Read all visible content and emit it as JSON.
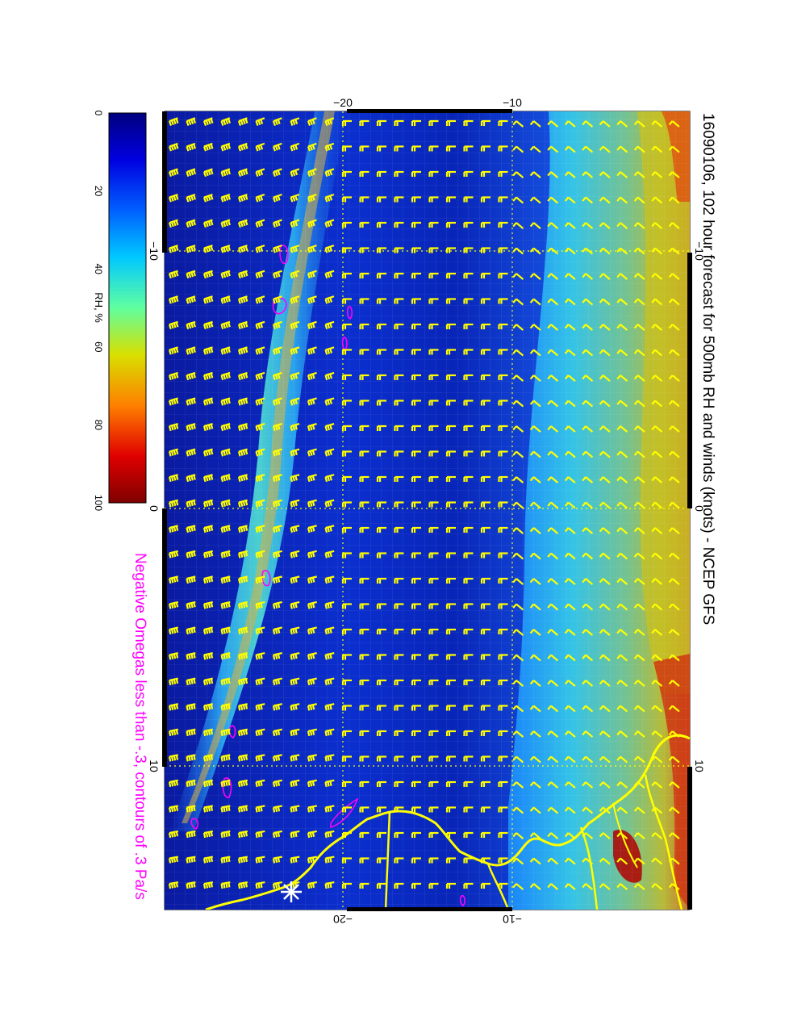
{
  "title": "16090106, 102 hour forecast for 500mb RH and winds (knots) - NCEP GFS",
  "subtitle": "Negative Omegas less than -.3, contours of .3 Pa/s",
  "colorbar": {
    "label": "RH, %",
    "ticks": [
      "0",
      "20",
      "40",
      "60",
      "80",
      "100"
    ],
    "tick_values": [
      0,
      20,
      40,
      60,
      80,
      100
    ]
  },
  "map_axes": {
    "lon_ticks": [
      {
        "value": -10,
        "top_label": "−10",
        "bottom_label": "−10"
      },
      {
        "value": 0,
        "top_label": "0",
        "bottom_label": "0"
      },
      {
        "value": 10,
        "top_label": "10",
        "bottom_label": "10"
      }
    ],
    "lat_ticks": [
      {
        "value": -20,
        "left_label": "−20",
        "right_label": "−20"
      },
      {
        "value": -10,
        "left_label": "−10",
        "right_label": "−10"
      }
    ]
  },
  "colors": {
    "barbs": "#ffff00",
    "coastline": "#ffff00",
    "omega_contours": "#ff00ff",
    "subtitle": "#ff00ff",
    "colormap": [
      "#00007f",
      "#0000e0",
      "#0060ff",
      "#00c8ff",
      "#60ffa0",
      "#d8e000",
      "#ff8000",
      "#e00000",
      "#7f0000"
    ]
  },
  "icons": {
    "station_marker": "asterisk-icon"
  }
}
